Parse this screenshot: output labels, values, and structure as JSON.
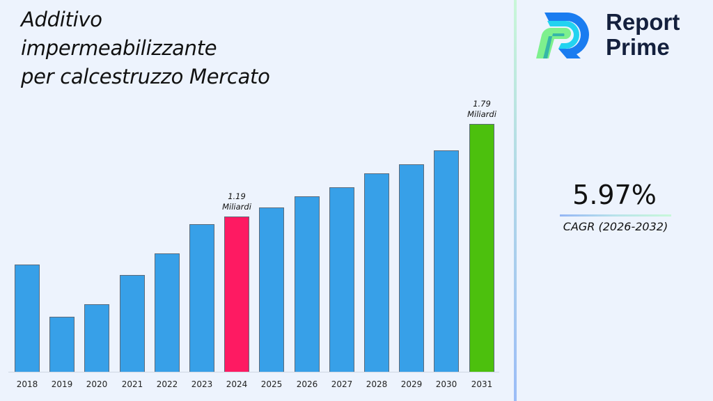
{
  "title": {
    "lines": [
      "Additivo",
      "impermeabilizzante",
      "per calcestruzzo Mercato"
    ]
  },
  "brand": {
    "name_line1": "Report",
    "name_line2": "Prime",
    "logo_icon": "report-prime-r-logo"
  },
  "cagr": {
    "value": "5.97%",
    "label": "CAGR (2026-2032)"
  },
  "colors": {
    "bar_default": "#37a0e8",
    "bar_highlight_2024": "#fe1a62",
    "bar_highlight_2031": "#4cc00d",
    "background": "#edf3fd",
    "brand_text": "#14203d"
  },
  "chart_data": {
    "type": "bar",
    "title": "Additivo impermeabilizzante per calcestruzzo Mercato",
    "xlabel": "",
    "ylabel": "",
    "unit": "Miliardi",
    "grid": false,
    "legend": null,
    "categories": [
      "2018",
      "2019",
      "2020",
      "2021",
      "2022",
      "2023",
      "2024",
      "2025",
      "2026",
      "2027",
      "2028",
      "2029",
      "2030",
      "2031"
    ],
    "values": [
      0.88,
      0.54,
      0.62,
      0.81,
      0.95,
      1.14,
      1.19,
      1.25,
      1.32,
      1.38,
      1.47,
      1.53,
      1.62,
      1.79
    ],
    "highlighted": {
      "2024": {
        "color": "#fe1a62",
        "label_value": "1.19",
        "label_unit": "Miliardi"
      },
      "2031": {
        "color": "#4cc00d",
        "label_value": "1.79",
        "label_unit": "Miliardi"
      }
    },
    "annotations": [
      {
        "category": "2024",
        "text": "1.19 Miliardi"
      },
      {
        "category": "2031",
        "text": "1.79 Miliardi"
      }
    ]
  }
}
